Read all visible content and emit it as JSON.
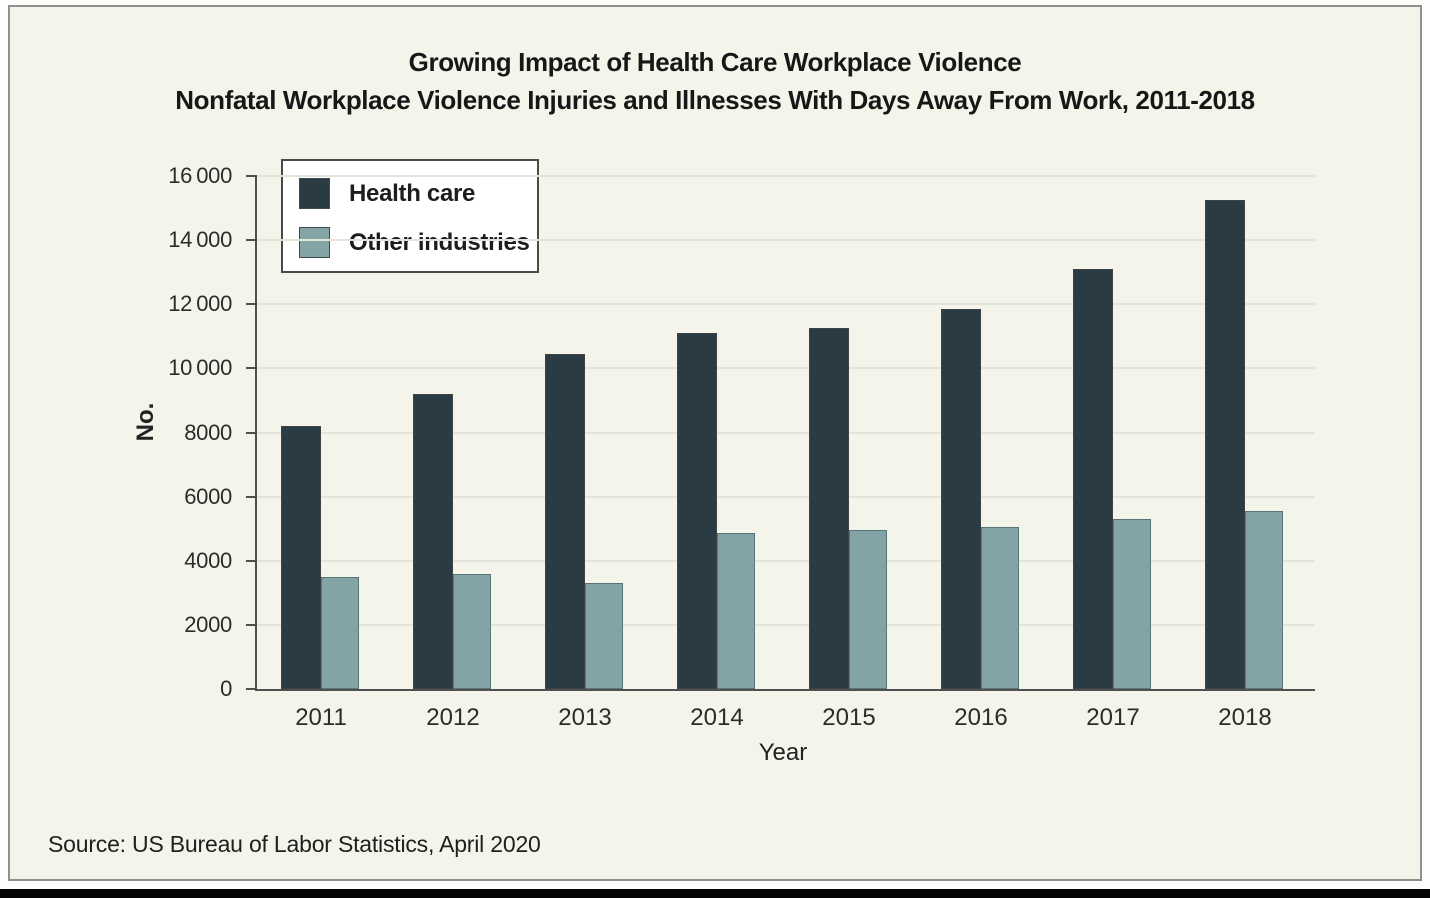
{
  "figure": {
    "title_line1": "Growing Impact of Health Care Workplace Violence",
    "title_line2": "Nonfatal Workplace Violence Injuries and Illnesses With Days Away From Work, 2011-2018",
    "source": "Source: US Bureau of Labor Statistics, April 2020"
  },
  "chart_data": {
    "type": "bar",
    "title": "Growing Impact of Health Care Workplace Violence",
    "subtitle": "Nonfatal Workplace Violence Injuries and Illnesses With Days Away From Work, 2011-2018",
    "categories": [
      "2011",
      "2012",
      "2013",
      "2014",
      "2015",
      "2016",
      "2017",
      "2018"
    ],
    "series": [
      {
        "name": "Health care",
        "color": "#2a3b43",
        "values": [
          8200,
          9200,
          10450,
          11100,
          11250,
          11850,
          13100,
          15250
        ]
      },
      {
        "name": "Other industries",
        "color": "#84a3a5",
        "values": [
          3500,
          3600,
          3300,
          4850,
          4950,
          5050,
          5300,
          5550
        ]
      }
    ],
    "xlabel": "Year",
    "ylabel": "No.",
    "ylim": [
      0,
      16000
    ],
    "ytick_step": 2000,
    "ytick_labels": [
      "0",
      "2000",
      "4000",
      "6000",
      "8000",
      "10 000",
      "12 000",
      "14 000",
      "16 000"
    ],
    "grid": "horizontal gridlines on",
    "legend_position": "upper-left"
  },
  "colors": {
    "background": "#f5f4ea",
    "figure_border": "#8f8f8f",
    "axis": "#4f4f4f",
    "gridline": "#e3e3da",
    "bottom_bar": "#050505"
  }
}
